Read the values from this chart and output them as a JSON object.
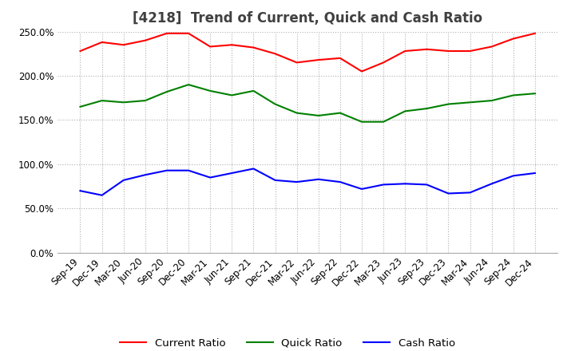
{
  "title": "[4218]  Trend of Current, Quick and Cash Ratio",
  "x_labels": [
    "Sep-19",
    "Dec-19",
    "Mar-20",
    "Jun-20",
    "Sep-20",
    "Dec-20",
    "Mar-21",
    "Jun-21",
    "Sep-21",
    "Dec-21",
    "Mar-22",
    "Jun-22",
    "Sep-22",
    "Dec-22",
    "Mar-23",
    "Jun-23",
    "Sep-23",
    "Dec-23",
    "Mar-24",
    "Jun-24",
    "Sep-24",
    "Dec-24"
  ],
  "current_ratio": [
    228,
    238,
    235,
    240,
    248,
    248,
    233,
    235,
    232,
    225,
    215,
    218,
    220,
    205,
    215,
    228,
    230,
    228,
    228,
    233,
    242,
    248
  ],
  "quick_ratio": [
    165,
    172,
    170,
    172,
    182,
    190,
    183,
    178,
    183,
    168,
    158,
    155,
    158,
    148,
    148,
    160,
    163,
    168,
    170,
    172,
    178,
    180
  ],
  "cash_ratio": [
    70,
    65,
    82,
    88,
    93,
    93,
    85,
    90,
    95,
    82,
    80,
    83,
    80,
    72,
    77,
    78,
    77,
    67,
    68,
    78,
    87,
    90
  ],
  "ylim": [
    0,
    250
  ],
  "yticks": [
    0,
    50,
    100,
    150,
    200,
    250
  ],
  "current_color": "#ff0000",
  "quick_color": "#008000",
  "cash_color": "#0000ff",
  "bg_color": "#ffffff",
  "grid_color": "#b0b0b0",
  "title_color": "#404040",
  "title_fontsize": 12,
  "tick_fontsize": 8.5,
  "legend_fontsize": 9.5
}
